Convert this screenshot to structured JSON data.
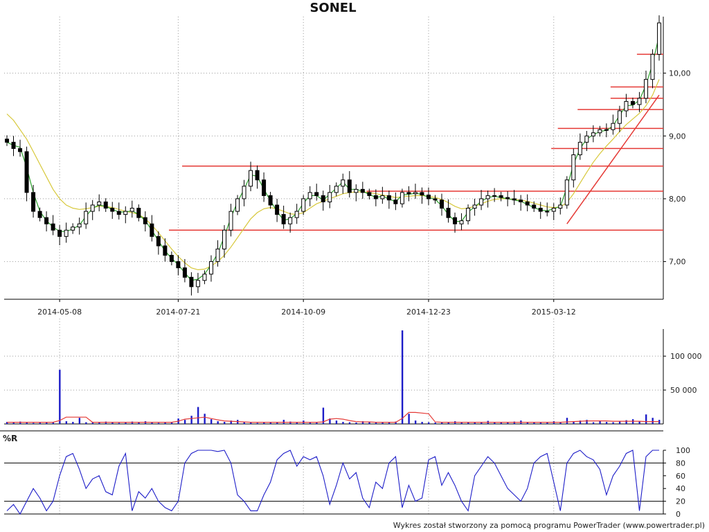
{
  "chart_data": [
    {
      "name": "price",
      "type": "candlestick",
      "title": "SONEL",
      "date_ticks": [
        "2014-05-08",
        "2014-07-21",
        "2014-10-09",
        "2014-12-23",
        "2015-03-12"
      ],
      "y_ticks": [
        "7,00",
        "8,00",
        "9,00",
        "10,00"
      ],
      "ylim": [
        6.4,
        10.9
      ],
      "grid": true,
      "series": [
        {
          "kind": "close",
          "color": "#000000",
          "values": [
            8.9,
            8.8,
            8.75,
            8.1,
            7.8,
            7.7,
            7.6,
            7.5,
            7.4,
            7.5,
            7.55,
            7.6,
            7.8,
            7.9,
            7.95,
            7.85,
            7.8,
            7.75,
            7.8,
            7.85,
            7.7,
            7.6,
            7.4,
            7.25,
            7.1,
            7.0,
            6.9,
            6.75,
            6.6,
            6.7,
            6.8,
            7.0,
            7.2,
            7.5,
            7.8,
            8.0,
            8.2,
            8.45,
            8.3,
            8.05,
            7.9,
            7.75,
            7.6,
            7.7,
            7.8,
            8.0,
            8.1,
            8.05,
            7.95,
            8.1,
            8.2,
            8.3,
            8.1,
            8.15,
            8.1,
            8.05,
            8.0,
            8.05,
            7.98,
            7.92,
            8.1,
            8.08,
            8.1,
            8.06,
            8.0,
            7.98,
            7.85,
            7.7,
            7.6,
            7.65,
            7.85,
            7.9,
            8.0,
            8.05,
            8.05,
            8.02,
            8.0,
            7.98,
            7.95,
            7.9,
            7.85,
            7.8,
            7.8,
            7.85,
            7.9,
            8.3,
            8.7,
            8.9,
            9.0,
            9.05,
            9.1,
            9.1,
            9.2,
            9.4,
            9.55,
            9.5,
            9.6,
            9.9,
            10.3,
            10.8
          ]
        },
        {
          "kind": "ma_short",
          "color": "#2ca02c",
          "values": [
            8.9,
            8.85,
            8.82,
            8.5,
            8.1,
            7.8,
            7.65,
            7.55,
            7.48,
            7.48,
            7.52,
            7.58,
            7.72,
            7.85,
            7.9,
            7.88,
            7.83,
            7.79,
            7.79,
            7.81,
            7.75,
            7.65,
            7.5,
            7.33,
            7.17,
            7.05,
            6.95,
            6.82,
            6.7,
            6.72,
            6.8,
            6.95,
            7.13,
            7.4,
            7.7,
            7.95,
            8.15,
            8.38,
            8.36,
            8.15,
            7.97,
            7.8,
            7.66,
            7.68,
            7.77,
            7.93,
            8.05,
            8.05,
            7.98,
            8.07,
            8.17,
            8.27,
            8.15,
            8.15,
            8.12,
            8.07,
            8.02,
            8.04,
            8.0,
            7.95,
            8.06,
            8.07,
            8.09,
            8.07,
            8.02,
            7.99,
            7.89,
            7.75,
            7.64,
            7.64,
            7.79,
            7.87,
            7.96,
            8.02,
            8.04,
            8.02,
            8.0,
            7.98,
            7.96,
            7.91,
            7.86,
            7.82,
            7.81,
            7.84,
            7.88,
            8.18,
            8.55,
            8.8,
            8.95,
            9.02,
            9.07,
            9.09,
            9.16,
            9.33,
            9.48,
            9.49,
            9.57,
            9.81,
            10.15,
            10.6
          ]
        },
        {
          "kind": "ma_long",
          "color": "#d7c83a",
          "values": [
            9.35,
            9.25,
            9.1,
            8.95,
            8.75,
            8.55,
            8.35,
            8.15,
            8.0,
            7.9,
            7.85,
            7.83,
            7.84,
            7.86,
            7.88,
            7.88,
            7.86,
            7.83,
            7.8,
            7.78,
            7.75,
            7.68,
            7.58,
            7.46,
            7.33,
            7.2,
            7.08,
            6.98,
            6.9,
            6.87,
            6.88,
            6.93,
            7.0,
            7.1,
            7.23,
            7.38,
            7.53,
            7.68,
            7.78,
            7.84,
            7.86,
            7.84,
            7.8,
            7.76,
            7.75,
            7.78,
            7.85,
            7.92,
            7.96,
            8.0,
            8.04,
            8.08,
            8.1,
            8.11,
            8.11,
            8.1,
            8.08,
            8.06,
            8.04,
            8.02,
            8.03,
            8.04,
            8.05,
            8.05,
            8.04,
            8.02,
            7.99,
            7.94,
            7.88,
            7.84,
            7.85,
            7.88,
            7.92,
            7.96,
            7.99,
            8.0,
            8.0,
            7.99,
            7.98,
            7.96,
            7.93,
            7.9,
            7.87,
            7.86,
            7.87,
            7.94,
            8.08,
            8.25,
            8.42,
            8.58,
            8.72,
            8.84,
            8.95,
            9.07,
            9.18,
            9.27,
            9.36,
            9.48,
            9.65,
            9.9
          ]
        }
      ],
      "horizontal_lines": [
        {
          "y": 7.5,
          "color": "#e53935"
        },
        {
          "y": 8.12,
          "color": "#e53935"
        },
        {
          "y": 8.52,
          "color": "#e53935"
        },
        {
          "y": 8.8,
          "color": "#e53935"
        },
        {
          "y": 9.12,
          "color": "#e53935"
        },
        {
          "y": 9.42,
          "color": "#e53935"
        },
        {
          "y": 9.6,
          "color": "#e53935"
        },
        {
          "y": 9.78,
          "color": "#e53935"
        },
        {
          "y": 10.3,
          "color": "#e53935"
        }
      ],
      "trendline": {
        "color": "#e53935",
        "x": [
          85,
          99
        ],
        "y": [
          7.6,
          9.65
        ]
      }
    },
    {
      "name": "volume",
      "type": "bar",
      "y_ticks": [
        "50 000",
        "100 000"
      ],
      "ylim": [
        0,
        140000
      ],
      "grid": true,
      "bar_color": "#1c1cc8",
      "avg_color": "#e53935",
      "values": [
        3000,
        2000,
        3500,
        2500,
        1500,
        2000,
        2500,
        3000,
        80000,
        4000,
        3000,
        9000,
        2500,
        3000,
        2000,
        3500,
        2500,
        1500,
        2000,
        3500,
        2500,
        4000,
        2000,
        1500,
        2500,
        3000,
        8000,
        6000,
        12000,
        25000,
        15000,
        7000,
        4000,
        3000,
        5000,
        6000,
        2500,
        2000,
        1500,
        3000,
        2500,
        2000,
        6000,
        3500,
        2500,
        5000,
        2000,
        3000,
        24000,
        8000,
        5000,
        3000,
        2500,
        2000,
        4000,
        3500,
        3000,
        2500,
        2000,
        3500,
        138000,
        15000,
        5000,
        3000,
        2500,
        2000,
        3000,
        2500,
        4000,
        2000,
        3000,
        2500,
        2000,
        4500,
        2500,
        3000,
        2000,
        3500,
        5000,
        3000,
        2500,
        2000,
        3000,
        4000,
        2500,
        9000,
        3500,
        5000,
        6000,
        2500,
        4000,
        3000,
        2500,
        4000,
        5500,
        7000,
        3500,
        14000,
        9000,
        6000
      ],
      "avg_values": [
        2500,
        2500,
        2500,
        2500,
        2500,
        2500,
        2500,
        2500,
        5000,
        10000,
        10000,
        10000,
        10000,
        2500,
        2500,
        2500,
        2500,
        2500,
        2500,
        2500,
        2500,
        2500,
        2500,
        2500,
        2500,
        2500,
        4000,
        7000,
        8000,
        9000,
        10000,
        8000,
        6000,
        4500,
        4000,
        3500,
        3000,
        2500,
        2500,
        2500,
        2500,
        2500,
        2500,
        2500,
        2500,
        2500,
        2500,
        2500,
        3000,
        7000,
        8000,
        7000,
        5000,
        3500,
        3000,
        3000,
        2500,
        2500,
        2500,
        2500,
        8000,
        17000,
        17000,
        16000,
        15000,
        3000,
        2500,
        2500,
        2500,
        2500,
        2500,
        2500,
        2500,
        2500,
        2500,
        2500,
        2500,
        2500,
        2500,
        2500,
        2500,
        2500,
        2500,
        2500,
        2500,
        3000,
        3500,
        4000,
        4500,
        4500,
        4500,
        4500,
        4000,
        4000,
        4000,
        4000,
        4000,
        3500,
        3500,
        3500
      ]
    },
    {
      "name": "williams-r",
      "type": "line",
      "label": "%R",
      "y_ticks": [
        "0",
        "20",
        "40",
        "60",
        "80",
        "100"
      ],
      "ylim": [
        0,
        100
      ],
      "reference_lines": [
        20,
        80
      ],
      "line_color": "#1c1cc8",
      "values": [
        5,
        15,
        0,
        20,
        40,
        25,
        5,
        20,
        60,
        90,
        95,
        70,
        40,
        55,
        60,
        35,
        30,
        75,
        95,
        5,
        35,
        25,
        40,
        20,
        10,
        5,
        20,
        80,
        95,
        100,
        100,
        100,
        98,
        100,
        80,
        30,
        20,
        5,
        5,
        30,
        50,
        85,
        95,
        100,
        75,
        90,
        85,
        90,
        60,
        15,
        45,
        80,
        55,
        65,
        25,
        10,
        50,
        40,
        80,
        90,
        10,
        45,
        20,
        25,
        85,
        90,
        45,
        65,
        45,
        20,
        5,
        60,
        75,
        90,
        80,
        60,
        40,
        30,
        20,
        40,
        80,
        90,
        95,
        50,
        5,
        80,
        95,
        100,
        90,
        85,
        70,
        30,
        60,
        75,
        95,
        100,
        5,
        90,
        100,
        100
      ]
    }
  ],
  "footer_text": "Wykres został stworzony za pomocą programu PowerTrader (www.powertrader.pl)"
}
